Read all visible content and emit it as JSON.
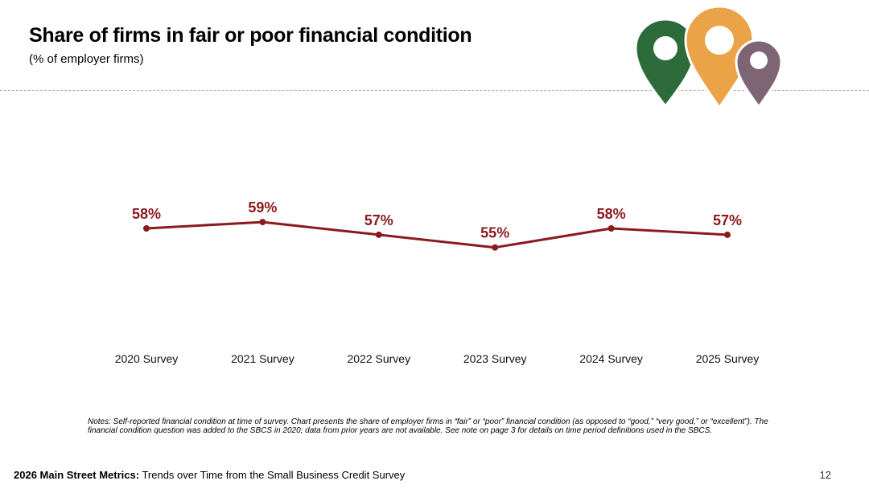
{
  "header": {
    "title": "Share of firms in fair or poor financial condition",
    "subtitle": "(% of employer firms)"
  },
  "colors": {
    "series": "#8b1a1f",
    "pin_green": "#2e6b3a",
    "pin_orange": "#eba347",
    "pin_purple": "#7d6574"
  },
  "chart_data": {
    "type": "line",
    "title": "Share of firms in fair or poor financial condition",
    "subtitle": "(% of employer firms)",
    "categories": [
      "2020 Survey",
      "2021 Survey",
      "2022 Survey",
      "2023 Survey",
      "2024 Survey",
      "2025 Survey"
    ],
    "series": [
      {
        "name": "Fair or poor financial condition",
        "values": [
          58,
          59,
          57,
          55,
          58,
          57
        ],
        "labels": [
          "58%",
          "59%",
          "57%",
          "55%",
          "58%",
          "57%"
        ]
      }
    ],
    "xlabel": "",
    "ylabel": "",
    "ylim": [
      0,
      100
    ],
    "grid": false,
    "legend": "none"
  },
  "notes": "Notes: Self-reported financial condition at time of survey. Chart presents the share of employer firms in “fair” or “poor” financial condition (as opposed to “good,” “very good,” or “excellent”). The financial condition question was added to the SBCS in 2020; data from prior years are not available. See note on page 3 for details on time period definitions used in the SBCS.",
  "footer": {
    "bold": "2026 Main Street Metrics:",
    "text": " Trends over Time from the Small Business Credit Survey",
    "page_number": "12"
  }
}
